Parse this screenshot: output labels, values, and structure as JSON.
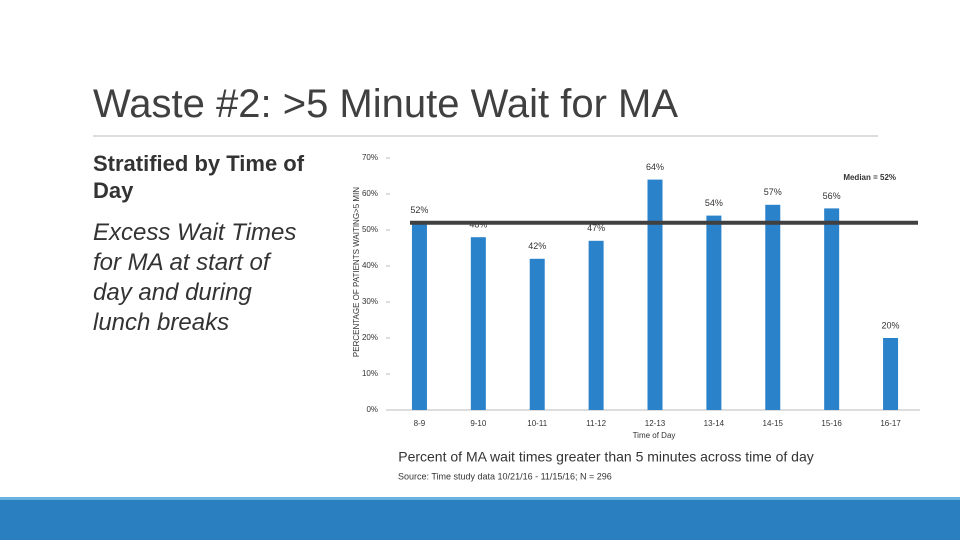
{
  "slide": {
    "title": "Waste #2: >5 Minute Wait for MA",
    "heading": "Stratified by Time of Day",
    "body": "Excess Wait Times for MA at start of day and during lunch breaks"
  },
  "chart_data": {
    "type": "bar",
    "categories": [
      "8-9",
      "9-10",
      "10-11",
      "11-12",
      "12-13",
      "13-14",
      "14-15",
      "15-16",
      "16-17"
    ],
    "values": [
      52,
      48,
      42,
      47,
      64,
      54,
      57,
      56,
      20
    ],
    "value_labels": [
      "52%",
      "48%",
      "42%",
      "47%",
      "64%",
      "54%",
      "57%",
      "56%",
      "20%"
    ],
    "color": "#2a82cb",
    "ylim": [
      0,
      70
    ],
    "yticks": [
      {
        "value": 0,
        "label": "0%"
      },
      {
        "value": 10,
        "label": "10%"
      },
      {
        "value": 20,
        "label": "20%"
      },
      {
        "value": 30,
        "label": "30%"
      },
      {
        "value": 40,
        "label": "40%"
      },
      {
        "value": 50,
        "label": "50%"
      },
      {
        "value": 60,
        "label": "60%"
      },
      {
        "value": 70,
        "label": "70%"
      }
    ],
    "median": 52,
    "median_label": "Median = 52%",
    "ylabel": "PERCENTAGE OF PATIENTS WAITING>5 MIN",
    "xlabel": "Time of Day",
    "caption": "Percent of MA wait times greater than 5 minutes across time of day",
    "source": "Source: Time study data 10/21/16 - 11/15/16; N = 296"
  }
}
